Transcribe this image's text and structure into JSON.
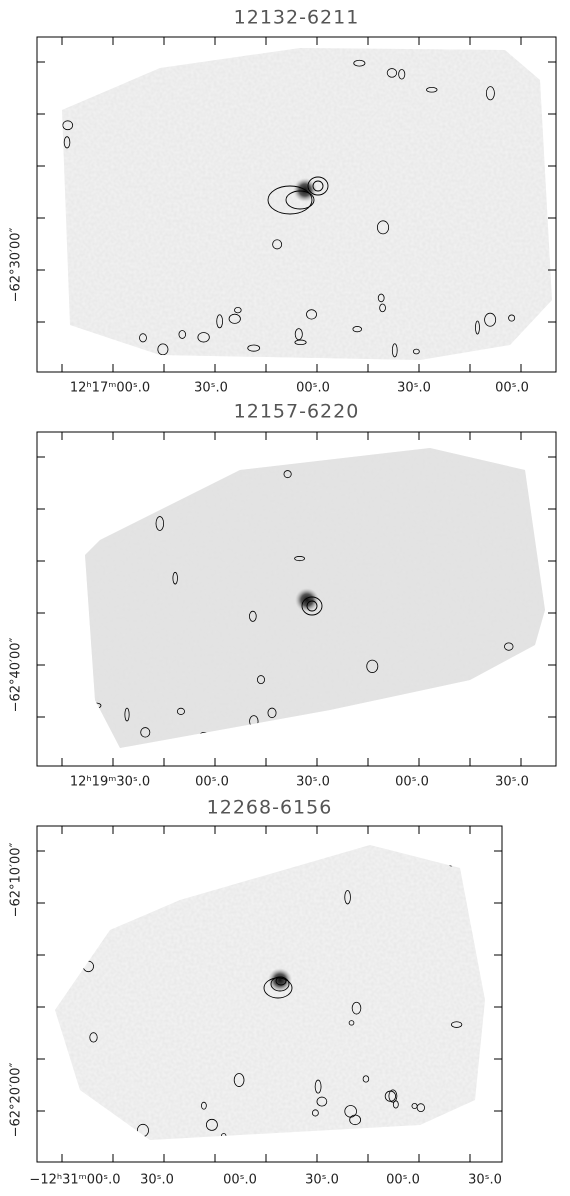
{
  "panels": [
    {
      "title": "12132-6211",
      "x_labels": [
        "12ʰ17ᵐ00ˢ.0",
        "30ˢ.0",
        "00ˢ.0",
        "30ˢ.0",
        "00ˢ.0"
      ],
      "y_labels": [
        "−62°30′00″"
      ]
    },
    {
      "title": "12157-6220",
      "x_labels": [
        "12ʰ19ᵐ30ˢ.0",
        "00ˢ.0",
        "30ˢ.0",
        "00ˢ.0",
        "30ˢ.0"
      ],
      "y_labels": [
        "−62°40′00″"
      ]
    },
    {
      "title": "12268-6156",
      "x_labels": [
        "−12ʰ31ᵐ00ˢ.0",
        "30ˢ.0",
        "00ˢ.0",
        "30ˢ.0",
        "00ˢ.0",
        "30ˢ.0"
      ],
      "y_labels": [
        "−62°10′00″",
        "−62°20′00″"
      ]
    }
  ]
}
